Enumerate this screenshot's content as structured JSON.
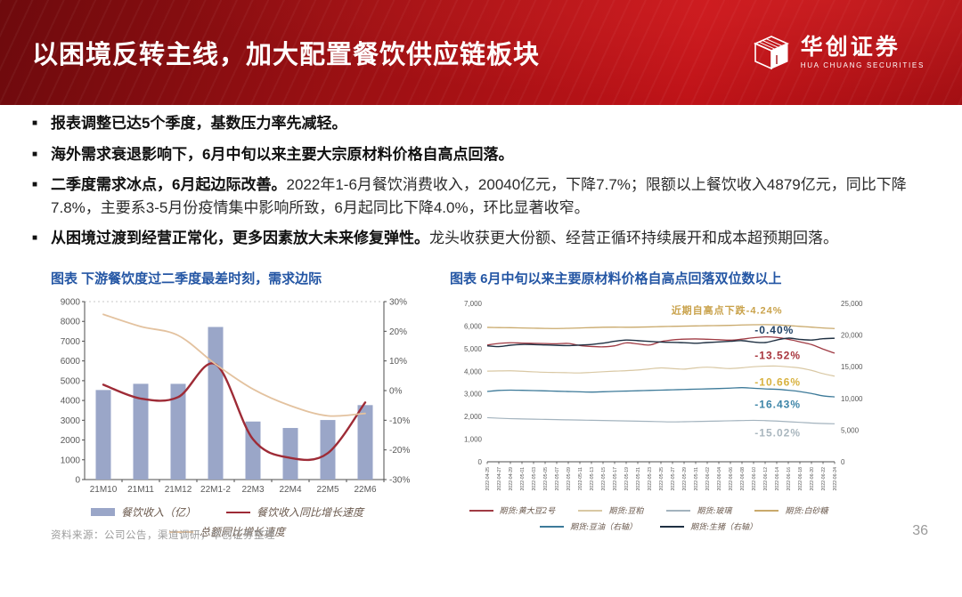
{
  "header": {
    "title": "以困境反转主线，加大配置餐饮供应链板块",
    "logo_cn": "华创证券",
    "logo_en": "HUA CHUANG SECURITIES"
  },
  "bullets": [
    {
      "lead": "报表调整已达5个季度，基数压力率先减轻。",
      "rest": ""
    },
    {
      "lead": "海外需求衰退影响下，6月中旬以来主要大宗原材料价格自高点回落。",
      "rest": ""
    },
    {
      "lead": "二季度需求冰点，6月起边际改善。",
      "rest": "2022年1-6月餐饮消费收入，20040亿元，下降7.7%；限额以上餐饮收入4879亿元，同比下降7.8%，主要系3-5月份疫情集中影响所致，6月起同比下降4.0%，环比显著收窄。"
    },
    {
      "lead": "从困境过渡到经营正常化，更多因素放大未来修复弹性。",
      "rest": "龙头收获更大份额、经营正循环持续展开和成本超预期回落。"
    }
  ],
  "footer": {
    "source": "资料来源：公司公告，渠道调研，华创证券整理",
    "page_number": "36"
  },
  "theme": {
    "header_red": "#bf1318",
    "chart_title_blue": "#2456a4",
    "bar_blue": "#9aa6c8",
    "dark_red_line": "#9e2b36",
    "tan_line": "#e3c29f"
  },
  "chart_data": [
    {
      "type": "bar",
      "title": "图表  下游餐饮度过二季度最差时刻，需求边际",
      "categories": [
        "21M10",
        "21M11",
        "21M12",
        "22M1-2",
        "22M3",
        "22M4",
        "22M5",
        "22M6"
      ],
      "bar_series": {
        "name": "餐饮收入（亿）",
        "color": "#9aa6c8",
        "axis": "left",
        "values": [
          4529,
          4843,
          4841,
          7718,
          2935,
          2609,
          3012,
          3766
        ]
      },
      "line_series": [
        {
          "name": "餐饮收入同比增长速度",
          "color": "#9e2b36",
          "width": 2.4,
          "axis": "right",
          "values": [
            2.0,
            -2.7,
            -2.2,
            8.9,
            -16.4,
            -22.7,
            -21.1,
            -4.0
          ]
        },
        {
          "name": "总额同比增长速度",
          "color": "#e3c29f",
          "width": 1.8,
          "axis": "right",
          "values": [
            25.7,
            21.6,
            18.6,
            8.9,
            0.5,
            -5.1,
            -8.5,
            -7.7
          ]
        }
      ],
      "y_left": {
        "min": 0,
        "max": 9000,
        "step": 1000,
        "comma": false,
        "suffix": ""
      },
      "y_right": {
        "min": -30,
        "max": 30,
        "step": 10,
        "comma": false,
        "suffix": "%"
      },
      "grid": false,
      "legend_position": "bottom"
    },
    {
      "type": "line",
      "title": "图表 6月中旬以来主要原材料价格自高点回落双位数以上",
      "x": [
        "2022-04-25",
        "2022-04-27",
        "2022-04-29",
        "2022-05-01",
        "2022-05-03",
        "2022-05-05",
        "2022-05-07",
        "2022-05-09",
        "2022-05-11",
        "2022-05-13",
        "2022-05-15",
        "2022-05-17",
        "2022-05-19",
        "2022-05-21",
        "2022-05-23",
        "2022-05-25",
        "2022-05-27",
        "2022-05-29",
        "2022-05-31",
        "2022-06-02",
        "2022-06-04",
        "2022-06-06",
        "2022-06-08",
        "2022-06-10",
        "2022-06-12",
        "2022-06-14",
        "2022-06-16",
        "2022-06-18",
        "2022-06-20",
        "2022-06-22",
        "2022-06-24"
      ],
      "series": [
        {
          "name": "期货:黄大豆2号",
          "color": "#a03b44",
          "width": 1.3,
          "axis": "left",
          "values": [
            5160,
            5230,
            5260,
            5245,
            5235,
            5225,
            5215,
            5230,
            5140,
            5095,
            5080,
            5125,
            5255,
            5210,
            5160,
            5310,
            5385,
            5420,
            5430,
            5415,
            5395,
            5375,
            5420,
            5480,
            5520,
            5495,
            5415,
            5300,
            5180,
            4980,
            4800
          ]
        },
        {
          "name": "期货:豆粕",
          "color": "#d9c8a4",
          "width": 1.2,
          "axis": "left",
          "values": [
            4005,
            4015,
            4020,
            4000,
            3975,
            3955,
            3945,
            3935,
            3925,
            3950,
            3980,
            4005,
            4025,
            4055,
            4105,
            4150,
            4120,
            4095,
            4150,
            4180,
            4150,
            4120,
            4155,
            4200,
            4225,
            4230,
            4195,
            4145,
            4040,
            3895,
            3785
          ]
        },
        {
          "name": "期货:玻璃",
          "color": "#a3b3be",
          "width": 1.2,
          "axis": "left",
          "values": [
            1950,
            1925,
            1905,
            1893,
            1882,
            1872,
            1862,
            1852,
            1843,
            1833,
            1823,
            1813,
            1803,
            1793,
            1783,
            1772,
            1762,
            1770,
            1780,
            1790,
            1800,
            1812,
            1822,
            1832,
            1820,
            1798,
            1770,
            1742,
            1712,
            1692,
            1678
          ]
        },
        {
          "name": "期货:白砂糖",
          "color": "#c9a96b",
          "width": 1.3,
          "axis": "left",
          "values": [
            5940,
            5930,
            5925,
            5915,
            5905,
            5895,
            5890,
            5900,
            5915,
            5930,
            5945,
            5950,
            5945,
            5950,
            5960,
            5975,
            5985,
            5995,
            6005,
            6015,
            6020,
            6030,
            6045,
            6055,
            6060,
            6050,
            6020,
            5985,
            5950,
            5915,
            5890
          ]
        },
        {
          "name": "期货:豆油（右轴）",
          "color": "#3d7a99",
          "width": 1.3,
          "axis": "right",
          "values": [
            11100,
            11260,
            11310,
            11280,
            11240,
            11190,
            11140,
            11090,
            11040,
            11000,
            11050,
            11110,
            11160,
            11210,
            11260,
            11310,
            11360,
            11410,
            11460,
            11510,
            11560,
            11620,
            11700,
            11600,
            11500,
            11440,
            11290,
            11080,
            10780,
            10400,
            10240
          ]
        },
        {
          "name": "期货:生猪（右轴）",
          "color": "#1f3042",
          "width": 1.4,
          "axis": "right",
          "values": [
            18300,
            18180,
            18400,
            18520,
            18500,
            18440,
            18380,
            18340,
            18420,
            18520,
            18720,
            19020,
            19220,
            19120,
            19000,
            18900,
            18840,
            18800,
            18700,
            18820,
            18920,
            19020,
            19120,
            18900,
            18820,
            19220,
            19520,
            19320,
            19220,
            19420,
            19500
          ]
        }
      ],
      "annotations": [
        {
          "text": "近期自高点下跌-4.24%",
          "color": "#c9a24b",
          "fx": 0.53,
          "fy": 0.065,
          "size": 11
        },
        {
          "text": "-0.40%",
          "color": "#1f4064",
          "fx": 0.77,
          "fy": 0.19,
          "size": 12
        },
        {
          "text": "-13.52%",
          "color": "#a8343c",
          "fx": 0.77,
          "fy": 0.35,
          "size": 12
        },
        {
          "text": "-10.66%",
          "color": "#d8b23f",
          "fx": 0.77,
          "fy": 0.52,
          "size": 12
        },
        {
          "text": "-16.43%",
          "color": "#3d85a8",
          "fx": 0.77,
          "fy": 0.66,
          "size": 12
        },
        {
          "text": "-15.02%",
          "color": "#a9b6be",
          "fx": 0.77,
          "fy": 0.84,
          "size": 12
        }
      ],
      "y_left": {
        "min": 0,
        "max": 7000,
        "step": 1000,
        "comma": true,
        "suffix": ""
      },
      "y_right": {
        "min": 0,
        "max": 25000,
        "step": 5000,
        "comma": true,
        "suffix": ""
      },
      "grid": false,
      "legend_position": "bottom"
    }
  ]
}
